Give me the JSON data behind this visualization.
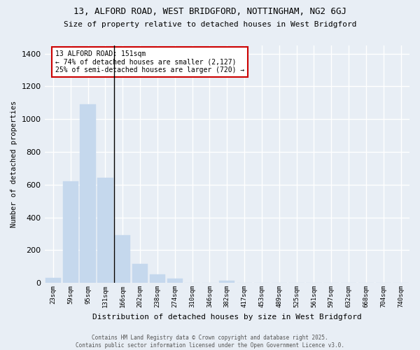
{
  "title_line1": "13, ALFORD ROAD, WEST BRIDGFORD, NOTTINGHAM, NG2 6GJ",
  "title_line2": "Size of property relative to detached houses in West Bridgford",
  "xlabel": "Distribution of detached houses by size in West Bridgford",
  "ylabel": "Number of detached properties",
  "bar_labels": [
    "23sqm",
    "59sqm",
    "95sqm",
    "131sqm",
    "166sqm",
    "202sqm",
    "238sqm",
    "274sqm",
    "310sqm",
    "346sqm",
    "382sqm",
    "417sqm",
    "453sqm",
    "489sqm",
    "525sqm",
    "561sqm",
    "597sqm",
    "632sqm",
    "668sqm",
    "704sqm",
    "740sqm"
  ],
  "bar_values": [
    30,
    620,
    1090,
    640,
    290,
    115,
    50,
    25,
    0,
    0,
    15,
    0,
    0,
    0,
    0,
    0,
    0,
    0,
    0,
    0,
    0
  ],
  "bar_color": "#c5d8ed",
  "bar_edge_color": "#c5d8ed",
  "background_color": "#e8eef5",
  "grid_color": "#ffffff",
  "ylim": [
    0,
    1450
  ],
  "yticks": [
    0,
    200,
    400,
    600,
    800,
    1000,
    1200,
    1400
  ],
  "annotation_line1": "13 ALFORD ROAD: 151sqm",
  "annotation_line2": "← 74% of detached houses are smaller (2,127)",
  "annotation_line3": "25% of semi-detached houses are larger (720) →",
  "footer_line1": "Contains HM Land Registry data © Crown copyright and database right 2025.",
  "footer_line2": "Contains public sector information licensed under the Open Government Licence v3.0.",
  "vline_x": 3.5
}
